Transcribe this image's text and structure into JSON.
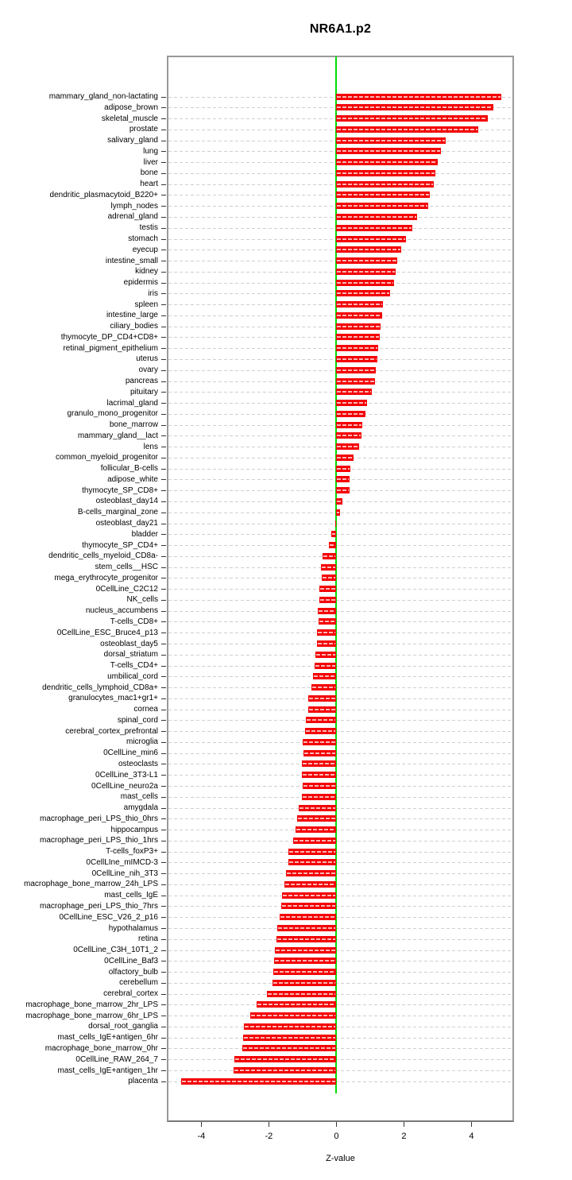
{
  "title": "NR6A1.p2",
  "chart_data": {
    "type": "bar",
    "orientation": "horizontal",
    "title": "NR6A1.p2",
    "xlabel": "Z-value",
    "xlim": [
      -5.02,
      5.26
    ],
    "xticks": [
      -4,
      -2,
      0,
      2,
      4
    ],
    "grid": "dashed-horizontal-per-category",
    "legend": "none",
    "bar_color": "#f40000",
    "bar_stripe_color": "#ffb3b3",
    "zero_line_color": "#00dd00",
    "gridline_color": "#cfcfcf",
    "categories": [
      "mammary_gland_non-lactating",
      "adipose_brown",
      "skeletal_muscle",
      "prostate",
      "salivary_gland",
      "lung",
      "liver",
      "bone",
      "heart",
      "dendritic_plasmacytoid_B220+",
      "lymph_nodes",
      "adrenal_gland",
      "testis",
      "stomach",
      "eyecup",
      "intestine_small",
      "kidney",
      "epidermis",
      "iris",
      "spleen",
      "intestine_large",
      "ciliary_bodies",
      "thymocyte_DP_CD4+CD8+",
      "retinal_pigment_epithelium",
      "uterus",
      "ovary",
      "pancreas",
      "pituitary",
      "lacrimal_gland",
      "granulo_mono_progenitor",
      "bone_marrow",
      "mammary_gland__lact",
      "lens",
      "common_myeloid_progenitor",
      "follicular_B-cells",
      "adipose_white",
      "thymocyte_SP_CD8+",
      "osteoblast_day14",
      "B-cells_marginal_zone",
      "osteoblast_day21",
      "bladder",
      "thymocyte_SP_CD4+",
      "dendritic_cells_myeloid_CD8a-",
      "stem_cells__HSC",
      "mega_erythrocyte_progenitor",
      "0CellLine_C2C12",
      "NK_cells",
      "nucleus_accumbens",
      "T-cells_CD8+",
      "0CellLine_ESC_Bruce4_p13",
      "osteoblast_day5",
      "dorsal_striatum",
      "T-cells_CD4+",
      "umbilical_cord",
      "dendritic_cells_lymphoid_CD8a+",
      "granulocytes_mac1+gr1+",
      "cornea",
      "spinal_cord",
      "cerebral_cortex_prefrontal",
      "microglia",
      "0CellLine_min6",
      "osteoclasts",
      "0CellLine_3T3-L1",
      "0CellLine_neuro2a",
      "mast_cells",
      "amygdala",
      "macrophage_peri_LPS_thio_0hrs",
      "hippocampus",
      "macrophage_peri_LPS_thio_1hrs",
      "T-cells_foxP3+",
      "0CellLIne_mIMCD-3",
      "0CellLine_nih_3T3",
      "macrophage_bone_marrow_24h_LPS",
      "mast_cells_IgE",
      "macrophage_peri_LPS_thio_7hrs",
      "0CellLine_ESC_V26_2_p16",
      "hypothalamus",
      "retina",
      "0CellLine_C3H_10T1_2",
      "0CellLine_Baf3",
      "olfactory_bulb",
      "cerebellum",
      "cerebral_cortex",
      "macrophage_bone_marrow_2hr_LPS",
      "macrophage_bone_marrow_6hr_LPS",
      "dorsal_root_ganglia",
      "mast_cells_IgE+antigen_6hr",
      "macrophage_bone_marrow_0hr",
      "0CellLine_RAW_264_7",
      "mast_cells_IgE+antigen_1hr",
      "placenta"
    ],
    "values": [
      4.89,
      4.64,
      4.49,
      4.19,
      3.24,
      3.1,
      3.0,
      2.93,
      2.89,
      2.76,
      2.72,
      2.39,
      2.25,
      2.05,
      1.91,
      1.8,
      1.75,
      1.7,
      1.59,
      1.37,
      1.36,
      1.31,
      1.28,
      1.23,
      1.21,
      1.16,
      1.14,
      1.04,
      0.91,
      0.85,
      0.76,
      0.74,
      0.67,
      0.52,
      0.41,
      0.38,
      0.38,
      0.19,
      0.1,
      -0.04,
      -0.15,
      -0.21,
      -0.41,
      -0.46,
      -0.44,
      -0.51,
      -0.5,
      -0.54,
      -0.53,
      -0.57,
      -0.57,
      -0.62,
      -0.64,
      -0.69,
      -0.74,
      -0.84,
      -0.84,
      -0.9,
      -0.92,
      -0.99,
      -0.98,
      -1.02,
      -1.01,
      -1.0,
      -1.03,
      -1.12,
      -1.17,
      -1.2,
      -1.27,
      -1.41,
      -1.42,
      -1.5,
      -1.53,
      -1.6,
      -1.63,
      -1.68,
      -1.76,
      -1.77,
      -1.82,
      -1.85,
      -1.86,
      -1.9,
      -2.05,
      -2.37,
      -2.56,
      -2.74,
      -2.75,
      -2.79,
      -3.02,
      -3.04,
      -4.59
    ]
  }
}
